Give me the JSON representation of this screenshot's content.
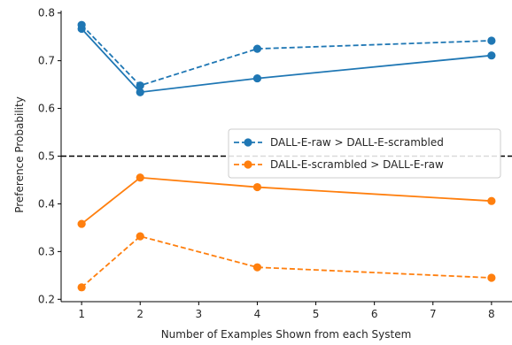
{
  "chart_data": {
    "type": "line",
    "xlabel": "Number of Examples Shown from each System",
    "ylabel": "Preference Probability",
    "xlim": [
      0.65,
      8.35
    ],
    "ylim": [
      0.195,
      0.805
    ],
    "x_ticks": [
      1,
      2,
      3,
      4,
      5,
      6,
      7,
      8
    ],
    "y_ticks": [
      0.2,
      0.3,
      0.4,
      0.5,
      0.6,
      0.7,
      0.8
    ],
    "reference_line": {
      "y": 0.5,
      "style": "dashed",
      "color": "#000000"
    },
    "grid": false,
    "legend_position": "center-right",
    "legend": [
      {
        "label": "DALL-E-raw > DALL-E-scrambled",
        "color": "#1f77b4",
        "style": "dashed"
      },
      {
        "label": "DALL-E-scrambled > DALL-E-raw",
        "color": "#ff7f0e",
        "style": "dashed"
      }
    ],
    "series": [
      {
        "color": "#1f77b4",
        "style": "solid",
        "x": [
          1,
          2,
          4,
          8
        ],
        "y": [
          0.767,
          0.634,
          0.663,
          0.711
        ]
      },
      {
        "color": "#1f77b4",
        "style": "dashed",
        "x": [
          1,
          2,
          4,
          8
        ],
        "y": [
          0.775,
          0.648,
          0.725,
          0.742
        ]
      },
      {
        "color": "#ff7f0e",
        "style": "solid",
        "x": [
          1,
          2,
          4,
          8
        ],
        "y": [
          0.358,
          0.455,
          0.435,
          0.406
        ]
      },
      {
        "color": "#ff7f0e",
        "style": "dashed",
        "x": [
          1,
          2,
          4,
          8
        ],
        "y": [
          0.225,
          0.332,
          0.267,
          0.245
        ]
      }
    ]
  }
}
